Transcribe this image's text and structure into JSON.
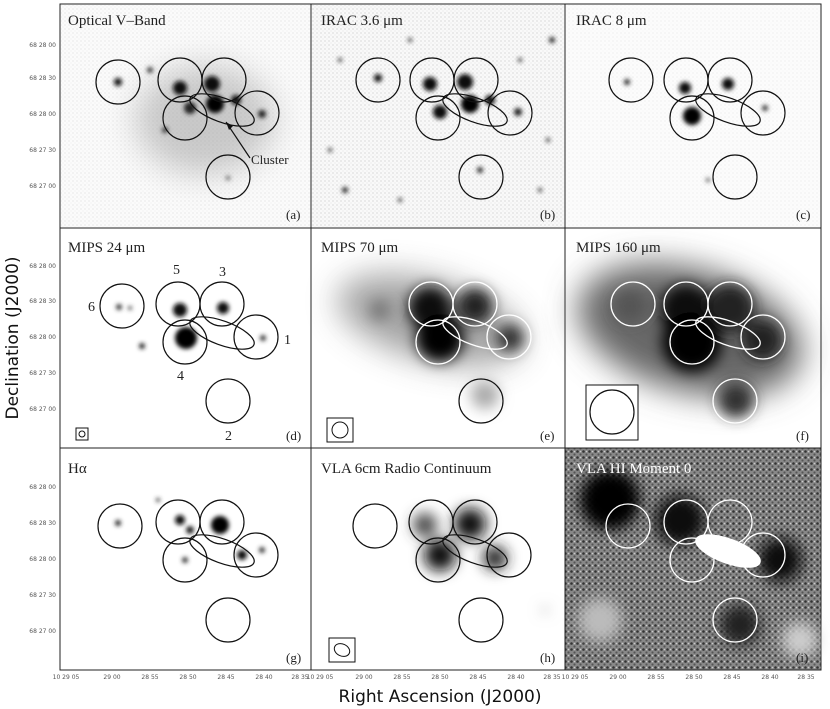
{
  "figure": {
    "xlabel": "Right Ascension (J2000)",
    "ylabel": "Declination (J2000)",
    "dec_ticks": [
      "68 28 00",
      "68 28 30",
      "68 28 00",
      "68 27 30",
      "68 27 00"
    ],
    "ra_ticks": [
      "10 29 05",
      "29 00",
      "28 55",
      "28 50",
      "28 45",
      "28 40",
      "28 35"
    ]
  },
  "panels": [
    {
      "title": "Optical V–Band",
      "label": "(a)",
      "annotation": "Cluster"
    },
    {
      "title": "IRAC 3.6 μm",
      "label": "(b)"
    },
    {
      "title": "IRAC 8 μm",
      "label": "(c)"
    },
    {
      "title": "MIPS 24 μm",
      "label": "(d)",
      "region_numbers": [
        "1",
        "2",
        "3",
        "4",
        "5",
        "6"
      ]
    },
    {
      "title": "MIPS 70 μm",
      "label": "(e)"
    },
    {
      "title": "MIPS 160 μm",
      "label": "(f)"
    },
    {
      "title": "Hα",
      "label": "(g)"
    },
    {
      "title": "VLA 6cm Radio Continuum",
      "label": "(h)"
    },
    {
      "title": "VLA HI Moment 0",
      "label": "(i)"
    }
  ]
}
